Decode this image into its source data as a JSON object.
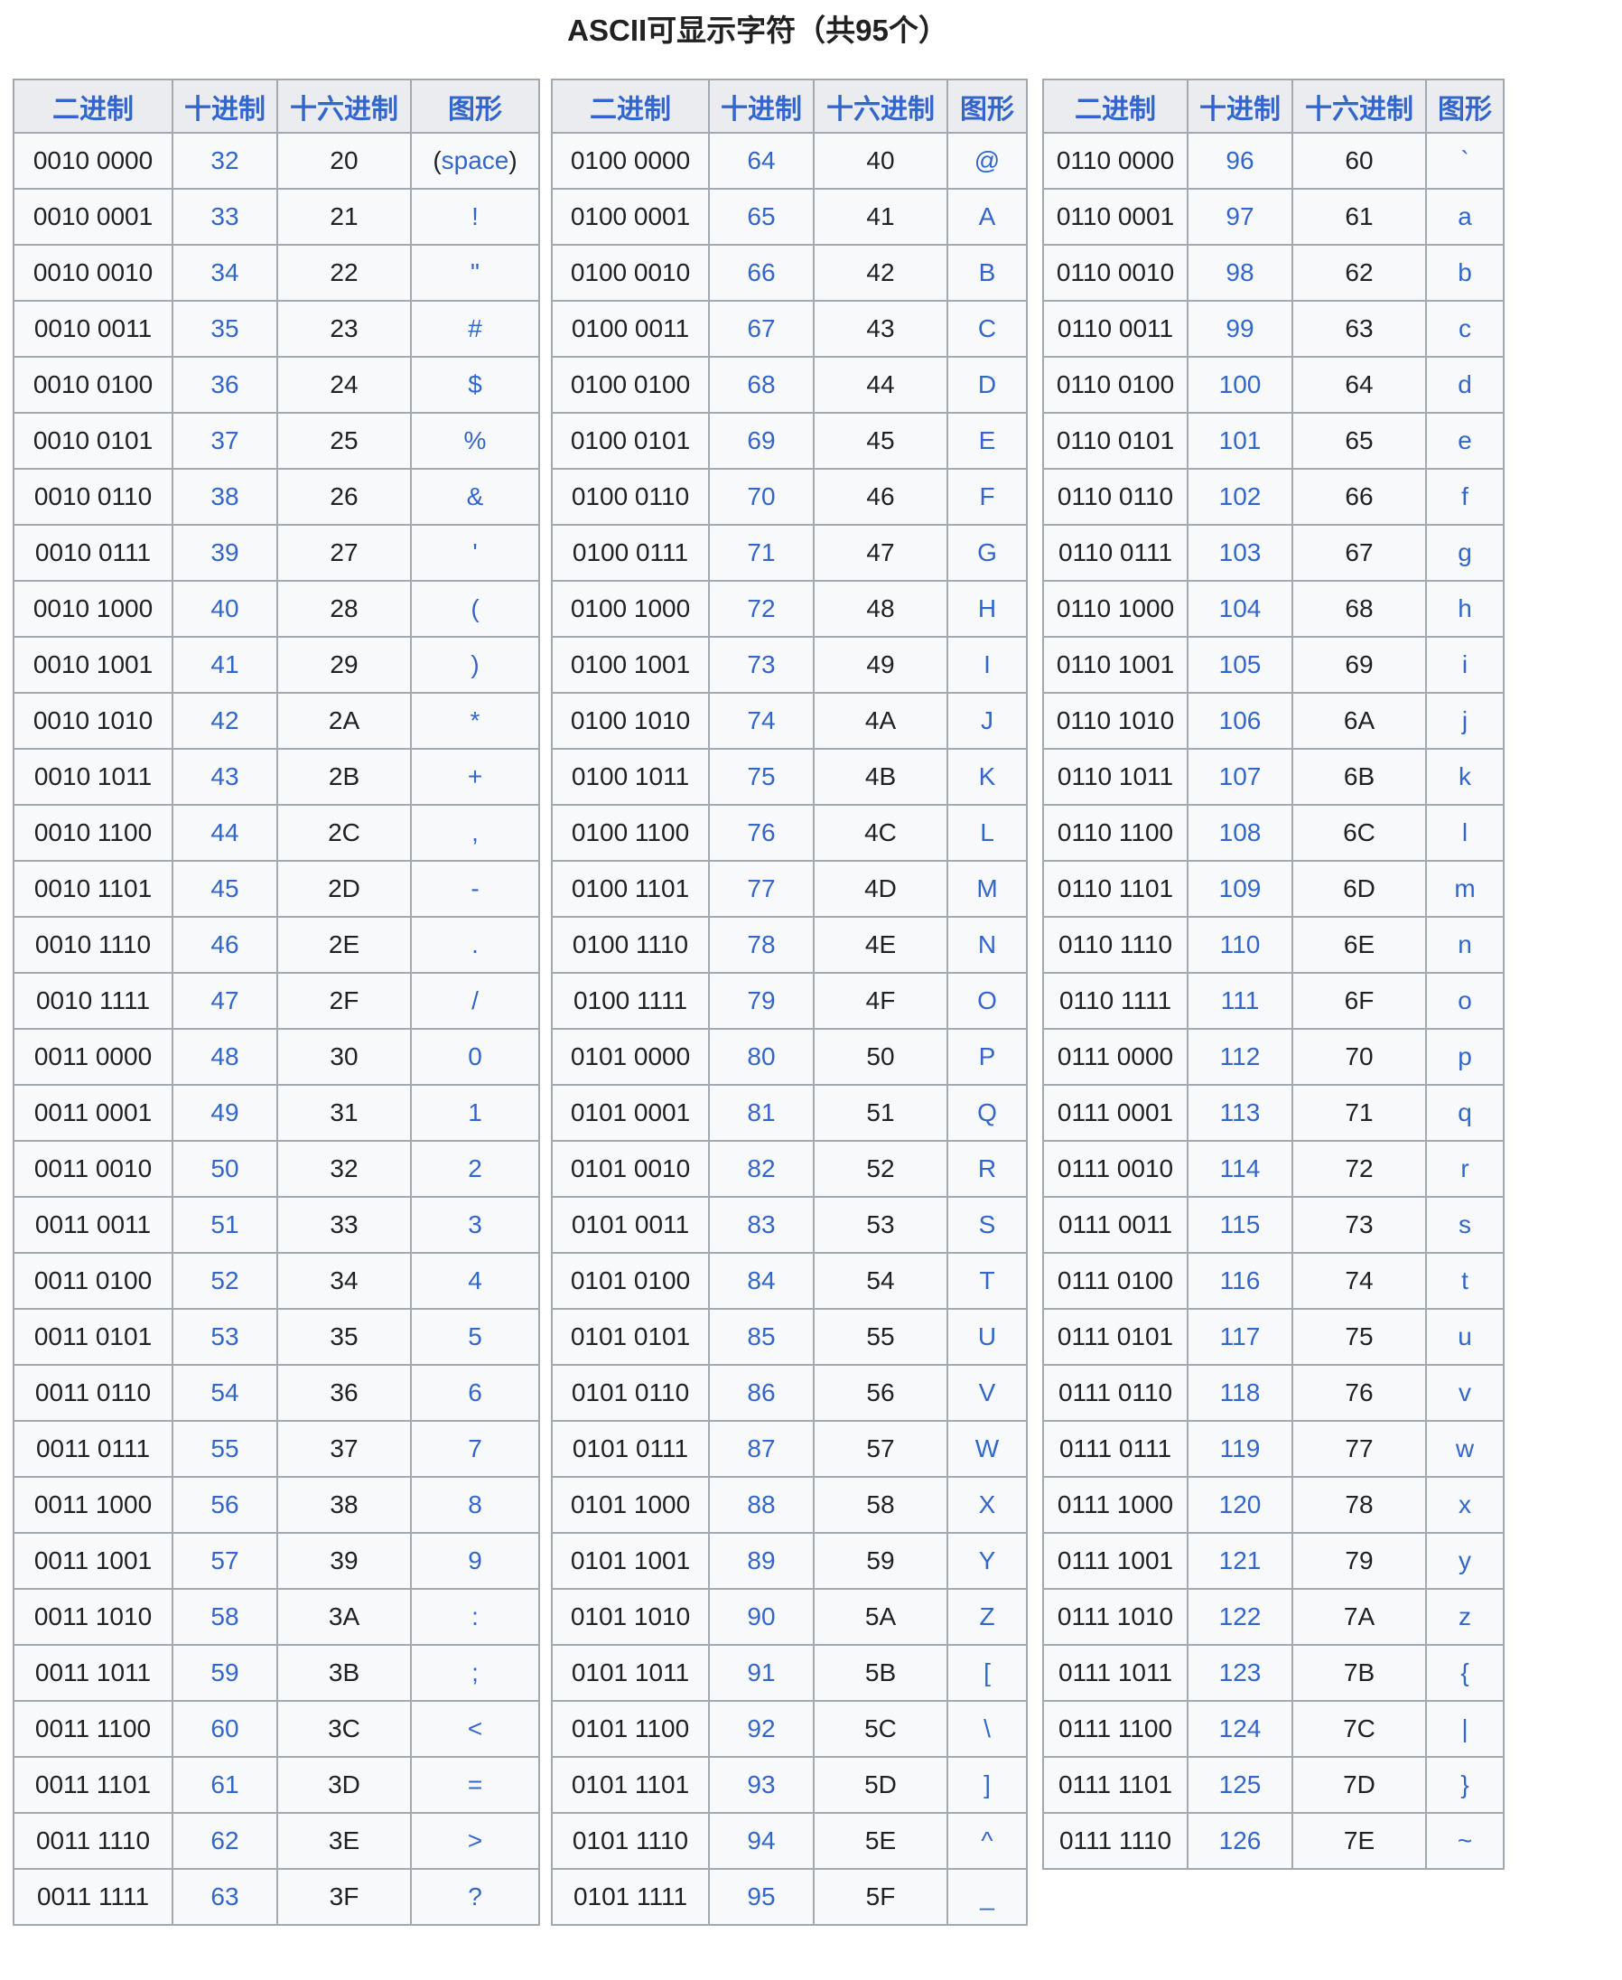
{
  "page": {
    "title": "ASCII可显示字符（共95个）"
  },
  "colors": {
    "link_blue": "#3366cc",
    "header_bg": "#eaecf0",
    "cell_bg": "#f8f9fa",
    "border": "#a2a9b1",
    "text": "#202122",
    "page_bg": "#ffffff"
  },
  "tables": [
    {
      "headers": [
        "二进制",
        "十进制",
        "十六进制",
        "图形"
      ],
      "rows": [
        [
          "0010 0000",
          "32",
          "20",
          "(space)"
        ],
        [
          "0010 0001",
          "33",
          "21",
          "!"
        ],
        [
          "0010 0010",
          "34",
          "22",
          "\""
        ],
        [
          "0010 0011",
          "35",
          "23",
          "#"
        ],
        [
          "0010 0100",
          "36",
          "24",
          "$"
        ],
        [
          "0010 0101",
          "37",
          "25",
          "%"
        ],
        [
          "0010 0110",
          "38",
          "26",
          "&"
        ],
        [
          "0010 0111",
          "39",
          "27",
          "'"
        ],
        [
          "0010 1000",
          "40",
          "28",
          "("
        ],
        [
          "0010 1001",
          "41",
          "29",
          ")"
        ],
        [
          "0010 1010",
          "42",
          "2A",
          "*"
        ],
        [
          "0010 1011",
          "43",
          "2B",
          "+"
        ],
        [
          "0010 1100",
          "44",
          "2C",
          ","
        ],
        [
          "0010 1101",
          "45",
          "2D",
          "-"
        ],
        [
          "0010 1110",
          "46",
          "2E",
          "."
        ],
        [
          "0010 1111",
          "47",
          "2F",
          "/"
        ],
        [
          "0011 0000",
          "48",
          "30",
          "0"
        ],
        [
          "0011 0001",
          "49",
          "31",
          "1"
        ],
        [
          "0011 0010",
          "50",
          "32",
          "2"
        ],
        [
          "0011 0011",
          "51",
          "33",
          "3"
        ],
        [
          "0011 0100",
          "52",
          "34",
          "4"
        ],
        [
          "0011 0101",
          "53",
          "35",
          "5"
        ],
        [
          "0011 0110",
          "54",
          "36",
          "6"
        ],
        [
          "0011 0111",
          "55",
          "37",
          "7"
        ],
        [
          "0011 1000",
          "56",
          "38",
          "8"
        ],
        [
          "0011 1001",
          "57",
          "39",
          "9"
        ],
        [
          "0011 1010",
          "58",
          "3A",
          ":"
        ],
        [
          "0011 1011",
          "59",
          "3B",
          ";"
        ],
        [
          "0011 1100",
          "60",
          "3C",
          "<"
        ],
        [
          "0011 1101",
          "61",
          "3D",
          "="
        ],
        [
          "0011 1110",
          "62",
          "3E",
          ">"
        ],
        [
          "0011 1111",
          "63",
          "3F",
          "?"
        ]
      ]
    },
    {
      "headers": [
        "二进制",
        "十进制",
        "十六进制",
        "图形"
      ],
      "rows": [
        [
          "0100 0000",
          "64",
          "40",
          "@"
        ],
        [
          "0100 0001",
          "65",
          "41",
          "A"
        ],
        [
          "0100 0010",
          "66",
          "42",
          "B"
        ],
        [
          "0100 0011",
          "67",
          "43",
          "C"
        ],
        [
          "0100 0100",
          "68",
          "44",
          "D"
        ],
        [
          "0100 0101",
          "69",
          "45",
          "E"
        ],
        [
          "0100 0110",
          "70",
          "46",
          "F"
        ],
        [
          "0100 0111",
          "71",
          "47",
          "G"
        ],
        [
          "0100 1000",
          "72",
          "48",
          "H"
        ],
        [
          "0100 1001",
          "73",
          "49",
          "I"
        ],
        [
          "0100 1010",
          "74",
          "4A",
          "J"
        ],
        [
          "0100 1011",
          "75",
          "4B",
          "K"
        ],
        [
          "0100 1100",
          "76",
          "4C",
          "L"
        ],
        [
          "0100 1101",
          "77",
          "4D",
          "M"
        ],
        [
          "0100 1110",
          "78",
          "4E",
          "N"
        ],
        [
          "0100 1111",
          "79",
          "4F",
          "O"
        ],
        [
          "0101 0000",
          "80",
          "50",
          "P"
        ],
        [
          "0101 0001",
          "81",
          "51",
          "Q"
        ],
        [
          "0101 0010",
          "82",
          "52",
          "R"
        ],
        [
          "0101 0011",
          "83",
          "53",
          "S"
        ],
        [
          "0101 0100",
          "84",
          "54",
          "T"
        ],
        [
          "0101 0101",
          "85",
          "55",
          "U"
        ],
        [
          "0101 0110",
          "86",
          "56",
          "V"
        ],
        [
          "0101 0111",
          "87",
          "57",
          "W"
        ],
        [
          "0101 1000",
          "88",
          "58",
          "X"
        ],
        [
          "0101 1001",
          "89",
          "59",
          "Y"
        ],
        [
          "0101 1010",
          "90",
          "5A",
          "Z"
        ],
        [
          "0101 1011",
          "91",
          "5B",
          "["
        ],
        [
          "0101 1100",
          "92",
          "5C",
          "\\"
        ],
        [
          "0101 1101",
          "93",
          "5D",
          "]"
        ],
        [
          "0101 1110",
          "94",
          "5E",
          "^"
        ],
        [
          "0101 1111",
          "95",
          "5F",
          "_"
        ]
      ]
    },
    {
      "headers": [
        "二进制",
        "十进制",
        "十六进制",
        "图形"
      ],
      "rows": [
        [
          "0110 0000",
          "96",
          "60",
          "`"
        ],
        [
          "0110 0001",
          "97",
          "61",
          "a"
        ],
        [
          "0110 0010",
          "98",
          "62",
          "b"
        ],
        [
          "0110 0011",
          "99",
          "63",
          "c"
        ],
        [
          "0110 0100",
          "100",
          "64",
          "d"
        ],
        [
          "0110 0101",
          "101",
          "65",
          "e"
        ],
        [
          "0110 0110",
          "102",
          "66",
          "f"
        ],
        [
          "0110 0111",
          "103",
          "67",
          "g"
        ],
        [
          "0110 1000",
          "104",
          "68",
          "h"
        ],
        [
          "0110 1001",
          "105",
          "69",
          "i"
        ],
        [
          "0110 1010",
          "106",
          "6A",
          "j"
        ],
        [
          "0110 1011",
          "107",
          "6B",
          "k"
        ],
        [
          "0110 1100",
          "108",
          "6C",
          "l"
        ],
        [
          "0110 1101",
          "109",
          "6D",
          "m"
        ],
        [
          "0110 1110",
          "110",
          "6E",
          "n"
        ],
        [
          "0110 1111",
          "111",
          "6F",
          "o"
        ],
        [
          "0111 0000",
          "112",
          "70",
          "p"
        ],
        [
          "0111 0001",
          "113",
          "71",
          "q"
        ],
        [
          "0111 0010",
          "114",
          "72",
          "r"
        ],
        [
          "0111 0011",
          "115",
          "73",
          "s"
        ],
        [
          "0111 0100",
          "116",
          "74",
          "t"
        ],
        [
          "0111 0101",
          "117",
          "75",
          "u"
        ],
        [
          "0111 0110",
          "118",
          "76",
          "v"
        ],
        [
          "0111 0111",
          "119",
          "77",
          "w"
        ],
        [
          "0111 1000",
          "120",
          "78",
          "x"
        ],
        [
          "0111 1001",
          "121",
          "79",
          "y"
        ],
        [
          "0111 1010",
          "122",
          "7A",
          "z"
        ],
        [
          "0111 1011",
          "123",
          "7B",
          "{"
        ],
        [
          "0111 1100",
          "124",
          "7C",
          "|"
        ],
        [
          "0111 1101",
          "125",
          "7D",
          "}"
        ],
        [
          "0111 1110",
          "126",
          "7E",
          "~"
        ]
      ]
    }
  ]
}
